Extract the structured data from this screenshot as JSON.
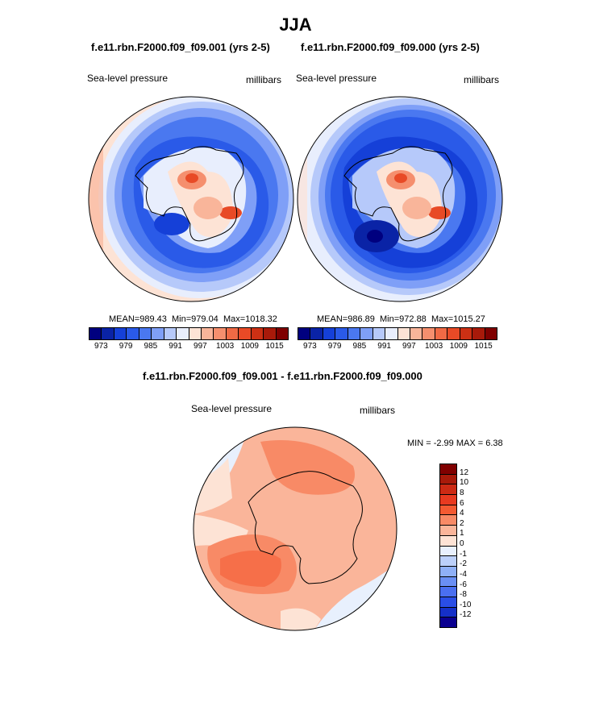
{
  "header": {
    "season": "JJA"
  },
  "panels": [
    {
      "case": "f.e11.rbn.F2000.f09_f09.001 (yrs 2-5)",
      "variable": "Sea-level pressure",
      "units": "millibars",
      "mean": "989.43",
      "min": "979.04",
      "max": "1018.32"
    },
    {
      "case": "f.e11.rbn.F2000.f09_f09.000 (yrs 2-5)",
      "variable": "Sea-level pressure",
      "units": "millibars",
      "mean": "986.89",
      "min": "972.88",
      "max": "1015.27"
    }
  ],
  "stat_labels": {
    "mean": "MEAN=",
    "min": "Min=",
    "max": "Max="
  },
  "colorbar": {
    "colors": [
      "#00007f",
      "#0a23a6",
      "#1540d8",
      "#2a5ae8",
      "#4a78f0",
      "#7f9ff7",
      "#b6c9fa",
      "#e8eefd",
      "#fde3d5",
      "#f9b59a",
      "#f58f6e",
      "#f06a45",
      "#e84a26",
      "#cc3014",
      "#a81a0a",
      "#7f0000"
    ],
    "ticks": [
      "973",
      "979",
      "985",
      "991",
      "997",
      "1003",
      "1009",
      "1015"
    ]
  },
  "difference": {
    "title": "f.e11.rbn.F2000.f09_f09.001 - f.e11.rbn.F2000.f09_f09.000",
    "variable": "Sea-level pressure",
    "units": "millibars",
    "minmax": "MIN =  -2.99 MAX =   6.38",
    "colors": [
      "#800000",
      "#a81a0a",
      "#cc2a14",
      "#e83a20",
      "#f45a32",
      "#f88a66",
      "#fab59a",
      "#fde3d5",
      "#e8f0fd",
      "#bcd0fa",
      "#8fb0f7",
      "#6a8ff4",
      "#4a6ff0",
      "#2a4ee6",
      "#1530c8",
      "#0a0090"
    ],
    "ticks": [
      "12",
      "10",
      "8",
      "6",
      "4",
      "2",
      "1",
      "0",
      "-1",
      "-2",
      "-4",
      "-6",
      "-8",
      "-10",
      "-12"
    ]
  }
}
